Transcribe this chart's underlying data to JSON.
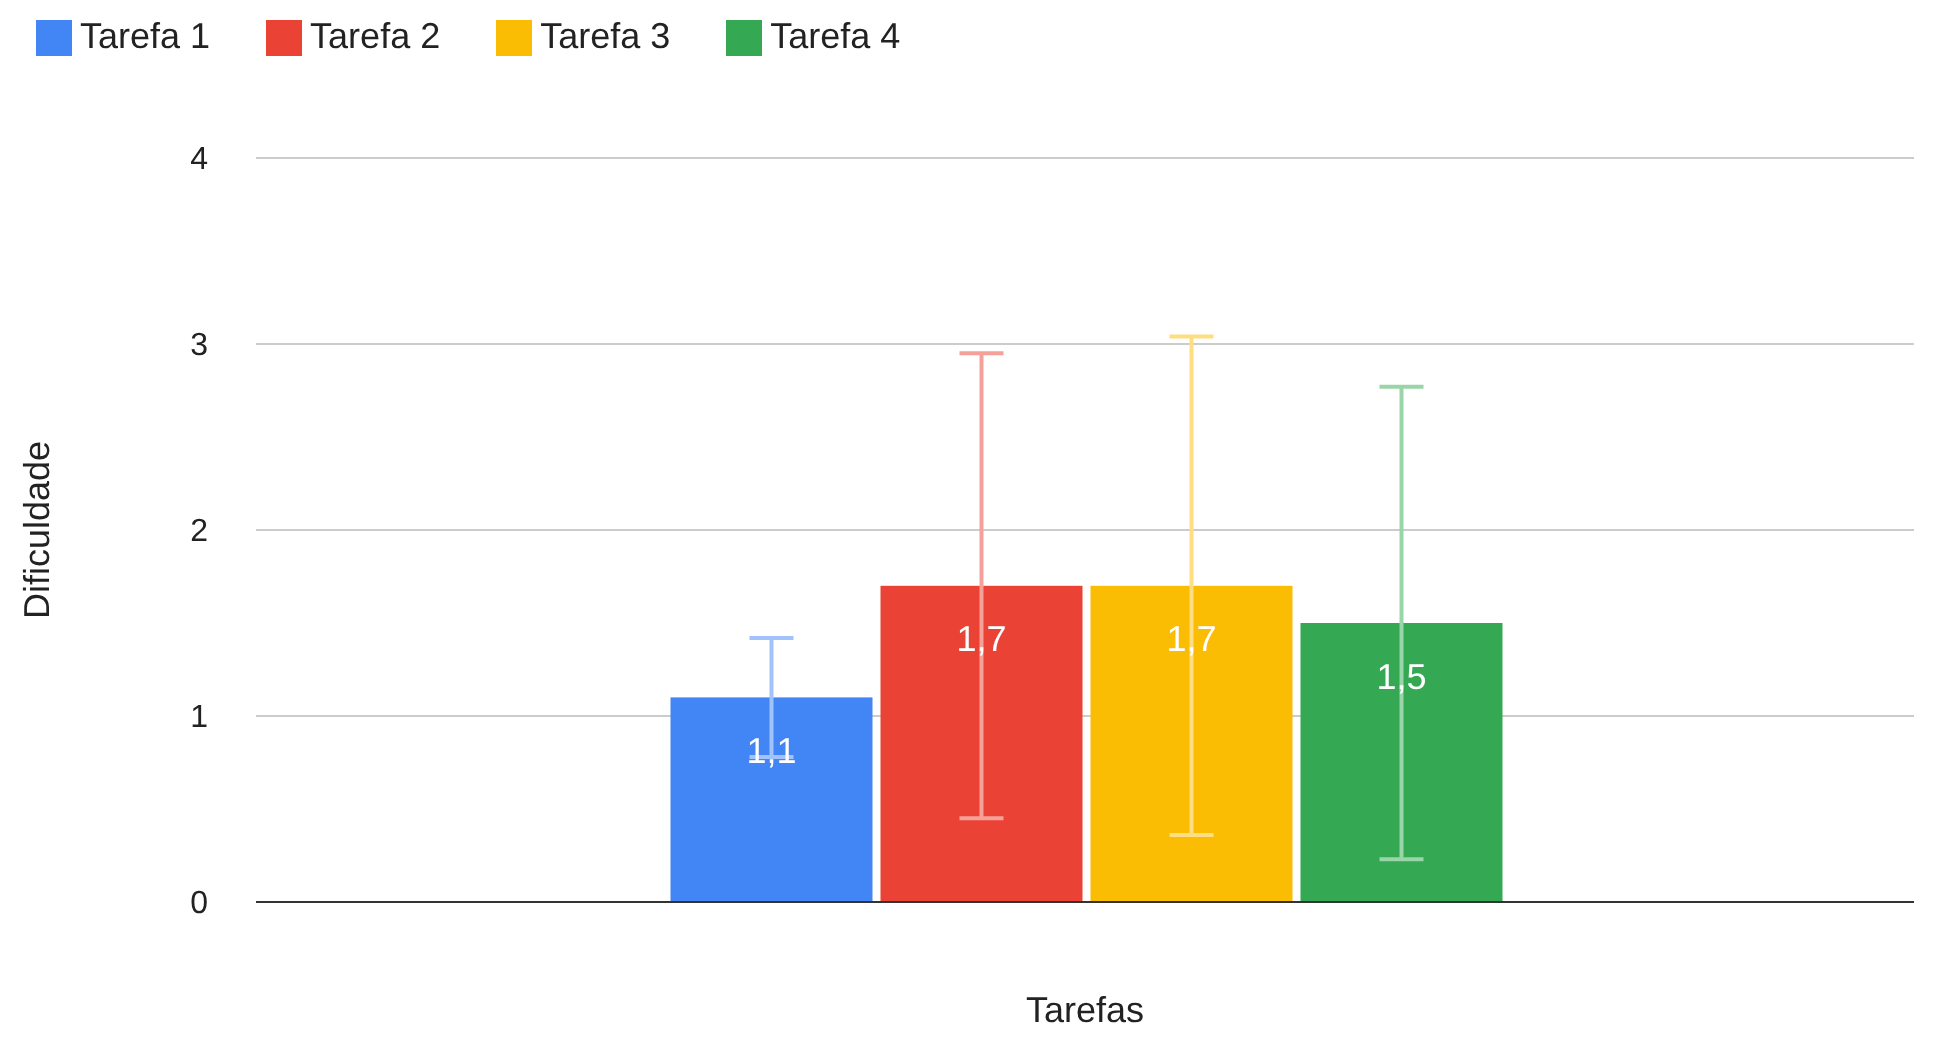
{
  "chart_data": {
    "type": "bar",
    "xlabel": "Tarefas",
    "ylabel": "Dificuldade",
    "categories": [
      null
    ],
    "series": [
      {
        "name": "Tarefa 1",
        "color": "#4285f4",
        "values": [
          1.1
        ],
        "errors": [
          0.32
        ],
        "value_labels": [
          "1,1"
        ]
      },
      {
        "name": "Tarefa 2",
        "color": "#ea4335",
        "values": [
          1.7
        ],
        "errors": [
          1.25
        ],
        "value_labels": [
          "1,7"
        ]
      },
      {
        "name": "Tarefa 3",
        "color": "#fbbc04",
        "values": [
          1.7
        ],
        "errors": [
          1.34
        ],
        "value_labels": [
          "1,7"
        ]
      },
      {
        "name": "Tarefa 4",
        "color": "#34a853",
        "values": [
          1.5
        ],
        "errors": [
          1.27
        ],
        "value_labels": [
          "1,5"
        ]
      }
    ],
    "ylim": [
      0,
      4
    ],
    "yticks": [
      0,
      1,
      2,
      3,
      4
    ],
    "grid": "y",
    "legend": "top left"
  }
}
